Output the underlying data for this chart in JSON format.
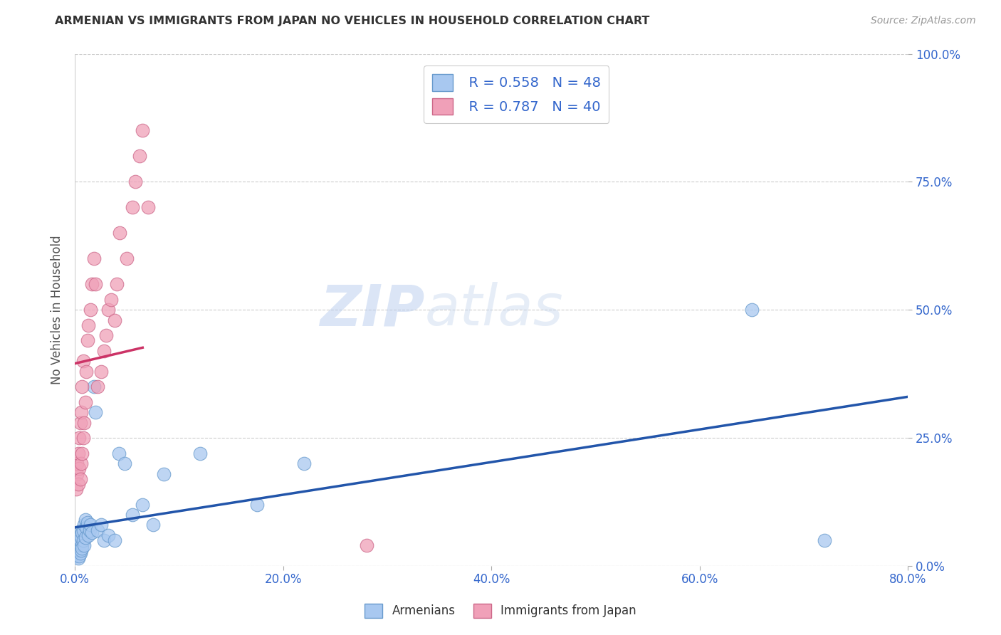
{
  "title": "ARMENIAN VS IMMIGRANTS FROM JAPAN NO VEHICLES IN HOUSEHOLD CORRELATION CHART",
  "source": "Source: ZipAtlas.com",
  "ylabel": "No Vehicles in Household",
  "xlim": [
    0,
    0.8
  ],
  "ylim": [
    0,
    1.0
  ],
  "legend_armenians_R": "R = 0.558",
  "legend_armenians_N": "N = 48",
  "legend_japan_R": "R = 0.787",
  "legend_japan_N": "N = 40",
  "color_armenians": "#a8c8f0",
  "color_japan": "#f0a0b8",
  "color_armenians_line": "#2255aa",
  "color_japan_line": "#cc3366",
  "watermark_zip": "ZIP",
  "watermark_atlas": "atlas",
  "background_color": "#ffffff",
  "armenians_x": [
    0.001,
    0.002,
    0.002,
    0.003,
    0.003,
    0.003,
    0.004,
    0.004,
    0.004,
    0.005,
    0.005,
    0.005,
    0.006,
    0.006,
    0.006,
    0.007,
    0.007,
    0.007,
    0.008,
    0.008,
    0.009,
    0.009,
    0.01,
    0.01,
    0.011,
    0.012,
    0.013,
    0.014,
    0.015,
    0.016,
    0.018,
    0.02,
    0.022,
    0.025,
    0.028,
    0.032,
    0.038,
    0.042,
    0.048,
    0.055,
    0.065,
    0.075,
    0.085,
    0.12,
    0.175,
    0.22,
    0.65,
    0.72
  ],
  "armenians_y": [
    0.02,
    0.03,
    0.025,
    0.015,
    0.035,
    0.04,
    0.02,
    0.045,
    0.03,
    0.05,
    0.025,
    0.06,
    0.03,
    0.055,
    0.07,
    0.04,
    0.065,
    0.035,
    0.05,
    0.07,
    0.04,
    0.08,
    0.055,
    0.09,
    0.075,
    0.085,
    0.06,
    0.07,
    0.08,
    0.065,
    0.35,
    0.3,
    0.07,
    0.08,
    0.05,
    0.06,
    0.05,
    0.22,
    0.2,
    0.1,
    0.12,
    0.08,
    0.18,
    0.22,
    0.12,
    0.2,
    0.5,
    0.05
  ],
  "japan_x": [
    0.001,
    0.002,
    0.002,
    0.003,
    0.003,
    0.004,
    0.004,
    0.005,
    0.005,
    0.006,
    0.006,
    0.007,
    0.007,
    0.008,
    0.008,
    0.009,
    0.01,
    0.011,
    0.012,
    0.013,
    0.015,
    0.016,
    0.018,
    0.02,
    0.022,
    0.025,
    0.028,
    0.03,
    0.032,
    0.035,
    0.038,
    0.04,
    0.043,
    0.05,
    0.055,
    0.058,
    0.062,
    0.065,
    0.07,
    0.28
  ],
  "japan_y": [
    0.15,
    0.18,
    0.2,
    0.16,
    0.22,
    0.19,
    0.25,
    0.17,
    0.28,
    0.2,
    0.3,
    0.22,
    0.35,
    0.25,
    0.4,
    0.28,
    0.32,
    0.38,
    0.44,
    0.47,
    0.5,
    0.55,
    0.6,
    0.55,
    0.35,
    0.38,
    0.42,
    0.45,
    0.5,
    0.52,
    0.48,
    0.55,
    0.65,
    0.6,
    0.7,
    0.75,
    0.8,
    0.85,
    0.7,
    0.04
  ]
}
